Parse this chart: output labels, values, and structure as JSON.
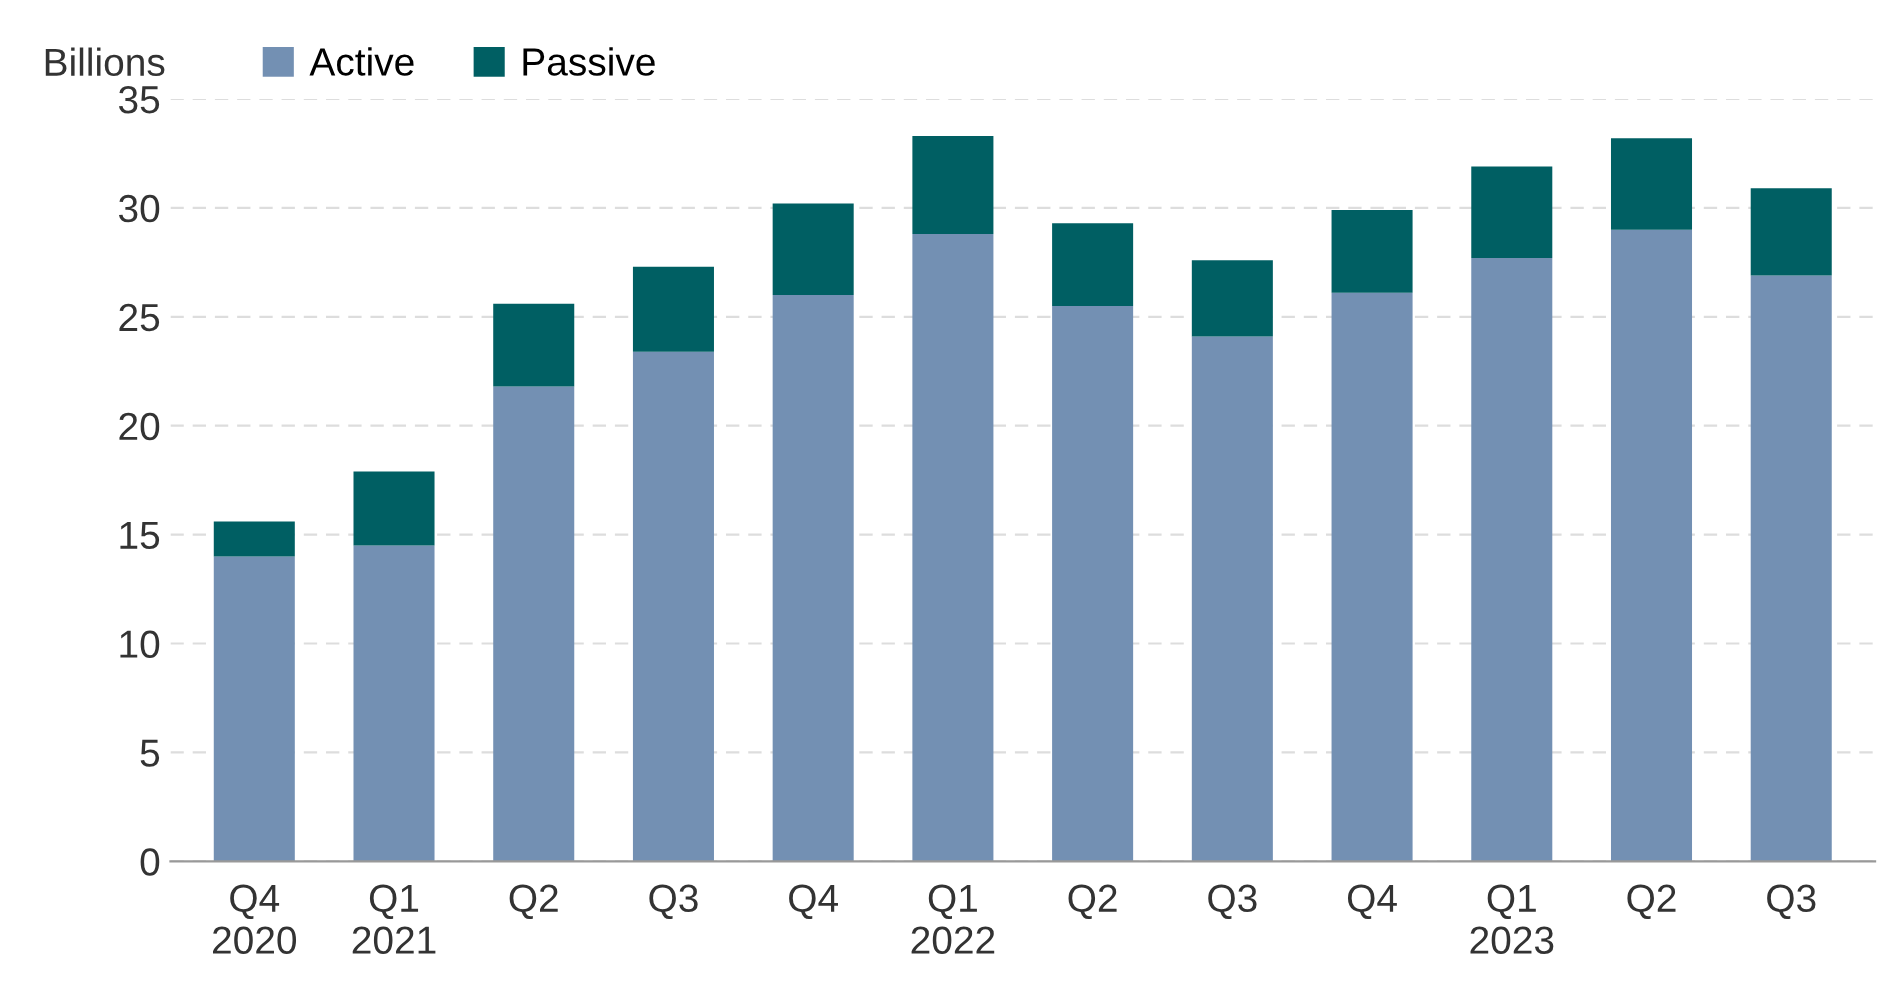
{
  "chart_data": {
    "type": "bar",
    "stacked": true,
    "ylabel": "Billions",
    "categories": [
      "Q4\n2020",
      "Q1\n2021",
      "Q2",
      "Q3",
      "Q4",
      "Q1\n2022",
      "Q2",
      "Q3",
      "Q4",
      "Q1\n2023",
      "Q2",
      "Q3"
    ],
    "series": [
      {
        "name": "Active",
        "color": "#7390b3",
        "values": [
          14.0,
          14.5,
          21.8,
          23.4,
          26.0,
          28.8,
          25.5,
          24.1,
          26.1,
          27.7,
          29.0,
          26.9
        ]
      },
      {
        "name": "Passive",
        "color": "#005f63",
        "values": [
          1.6,
          3.4,
          3.8,
          3.9,
          4.2,
          4.5,
          3.8,
          3.5,
          3.8,
          4.2,
          4.2,
          4.0
        ]
      }
    ],
    "ylim": [
      0,
      35
    ],
    "yticks": [
      0,
      5,
      10,
      15,
      20,
      25,
      30,
      35
    ],
    "grid": "y",
    "legend": "top left"
  }
}
